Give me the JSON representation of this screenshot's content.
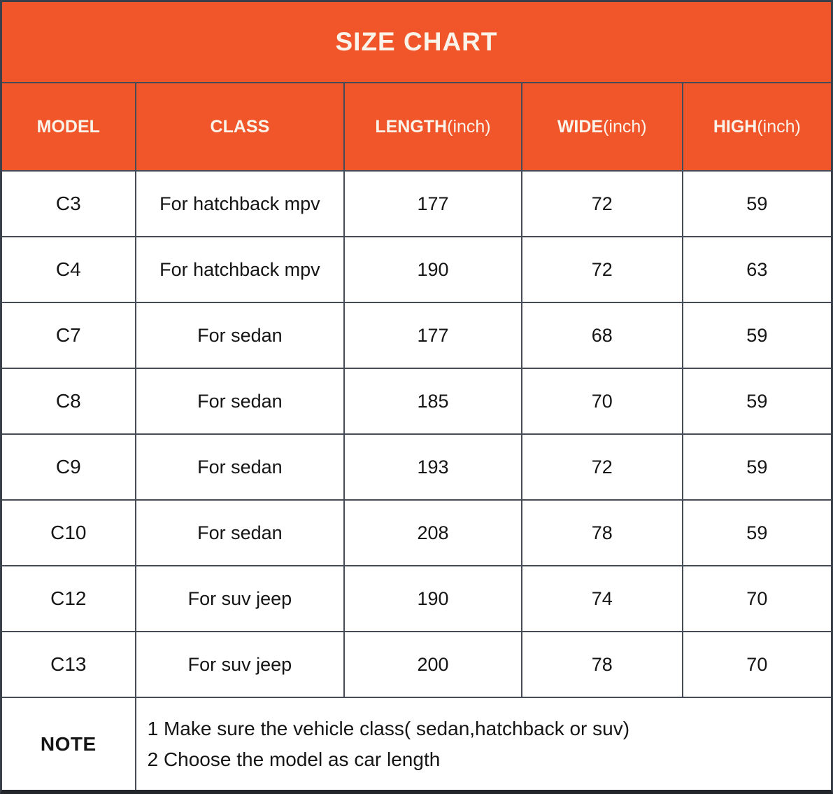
{
  "title": "SIZE CHART",
  "colors": {
    "accent_orange": "#F1562B",
    "grid_border": "#454C58",
    "header_text": "#FAF3EA",
    "cell_text": "#151515"
  },
  "header_parts": [
    [
      "MODEL",
      ""
    ],
    [
      "CLASS",
      ""
    ],
    [
      "LENGTH",
      "(inch)"
    ],
    [
      "WIDE",
      "(inch)"
    ],
    [
      "HIGH",
      "(inch)"
    ]
  ],
  "note": {
    "label": "NOTE",
    "lines": [
      "1 Make sure the vehicle class( sedan,hatchback or suv)",
      "2 Choose the model as car length"
    ]
  },
  "chart_data": {
    "type": "table",
    "title": "SIZE CHART",
    "columns": [
      "MODEL",
      "CLASS",
      "LENGTH(inch)",
      "WIDE(inch)",
      "HIGH(inch)"
    ],
    "rows": [
      [
        "C3",
        "For hatchback mpv",
        177,
        72,
        59
      ],
      [
        "C4",
        "For hatchback mpv",
        190,
        72,
        63
      ],
      [
        "C7",
        "For sedan",
        177,
        68,
        59
      ],
      [
        "C8",
        "For sedan",
        185,
        70,
        59
      ],
      [
        "C9",
        "For sedan",
        193,
        72,
        59
      ],
      [
        "C10",
        "For sedan",
        208,
        78,
        59
      ],
      [
        "C12",
        "For suv jeep",
        190,
        74,
        70
      ],
      [
        "C13",
        "For suv jeep",
        200,
        78,
        70
      ]
    ],
    "note": [
      "1 Make sure the vehicle class( sedan,hatchback or suv)",
      "2 Choose the model as car length"
    ]
  }
}
